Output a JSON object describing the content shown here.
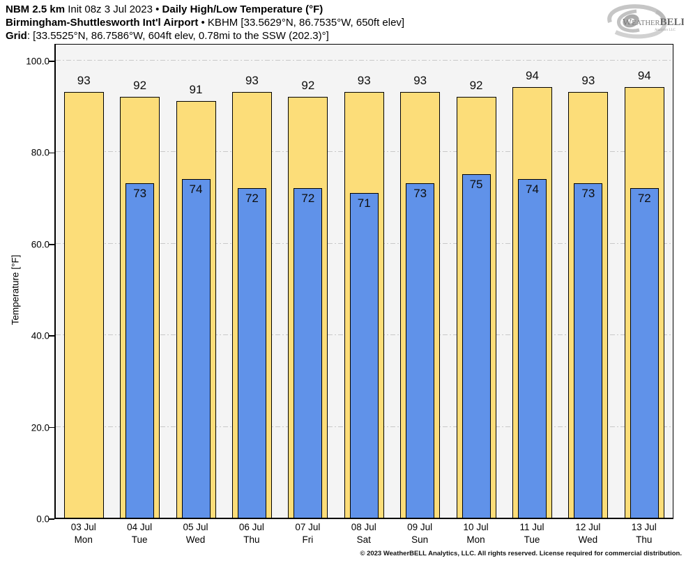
{
  "title": {
    "model": "NBM 2.5 km",
    "init": " Init 08z 3 Jul 2023 • ",
    "product": "Daily High/Low Temperature (°F)",
    "station": "Birmingham-Shuttlesworth Int'l Airport",
    "station_details": " • KBHM [33.5629°N, 86.7535°W, 650ft elev]",
    "grid_label": "Grid",
    "grid_details": ": [33.5525°N, 86.7586°W, 604ft elev, 0.78mi to the SSW (202.3)°]"
  },
  "logo": {
    "weather": "Weather",
    "bell": "BELL",
    "sub": "Analytics LLC"
  },
  "chart_data": {
    "type": "bar",
    "title": "Daily High/Low Temperature (°F)",
    "ylabel": "Temperature [°F]",
    "ylim": [
      0,
      103.8
    ],
    "yticks": [
      0,
      20,
      40,
      60,
      80,
      100
    ],
    "ytick_labels": [
      "0.0",
      "20.0",
      "40.0",
      "60.0",
      "80.0",
      "100.0"
    ],
    "grid": "horizontal dash-dot lines at labeled ticks",
    "legend_position": "none",
    "categories": [
      "03 Jul",
      "04 Jul",
      "05 Jul",
      "06 Jul",
      "07 Jul",
      "08 Jul",
      "09 Jul",
      "10 Jul",
      "11 Jul",
      "12 Jul",
      "13 Jul"
    ],
    "weekdays": [
      "Mon",
      "Tue",
      "Wed",
      "Thu",
      "Fri",
      "Sat",
      "Sun",
      "Mon",
      "Tue",
      "Wed",
      "Thu"
    ],
    "series": [
      {
        "name": "Daily High",
        "color": "#fcdd79",
        "values": [
          93,
          92,
          91,
          93,
          92,
          93,
          93,
          92,
          94,
          93,
          94
        ]
      },
      {
        "name": "Daily Low",
        "color": "#6092e9",
        "values": [
          null,
          73,
          74,
          72,
          72,
          71,
          73,
          75,
          74,
          73,
          72
        ]
      }
    ]
  },
  "footer": {
    "copyright": "© 2023 WeatherBELL Analytics, LLC. All rights reserved. License required for commercial distribution."
  },
  "colors": {
    "high_bar": "#fcdd79",
    "low_bar": "#6092e9",
    "bar_border": "#000000",
    "plot_bg": "#f4f4f4",
    "grid_line": "#c8c8c8",
    "axis": "#000000",
    "page_bg": "#ffffff",
    "logo_gray": "#9a9a9a"
  }
}
